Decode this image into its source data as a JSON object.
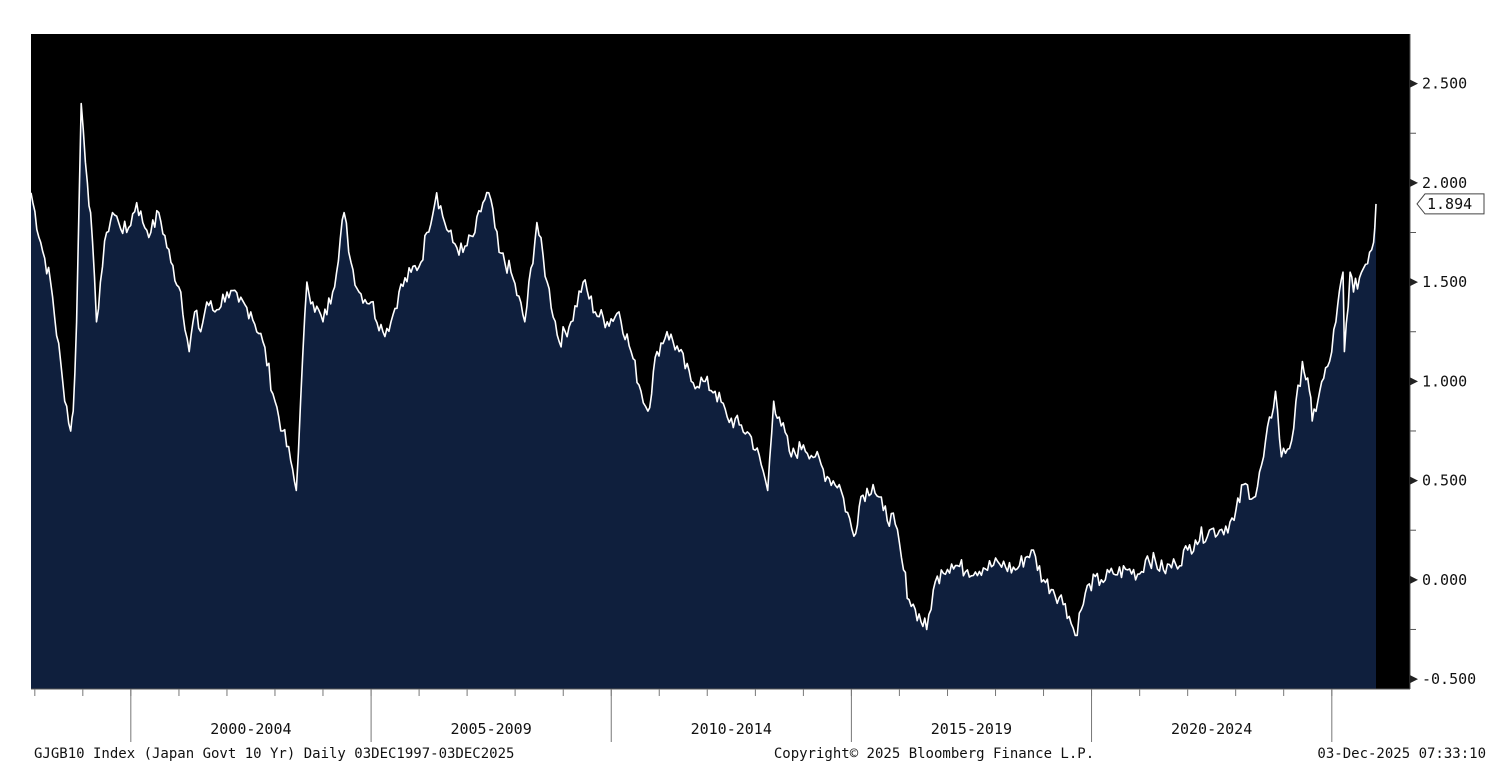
{
  "chart_data": {
    "type": "area",
    "title": "",
    "xlabel": "",
    "ylabel": "",
    "x_range": [
      "1997-12-03",
      "2025-12-03"
    ],
    "ylim": [
      -0.55,
      2.75
    ],
    "y_ticks": [
      -0.5,
      0.0,
      0.5,
      1.0,
      1.5,
      2.0,
      2.5
    ],
    "y_tick_labels": [
      "-0.500",
      "0.000",
      "0.500",
      "1.000",
      "1.500",
      "2.000",
      "2.500"
    ],
    "x_period_labels": [
      {
        "label": "2000-2004",
        "start": "2000-01-01",
        "end": "2004-12-31"
      },
      {
        "label": "2005-2009",
        "start": "2005-01-01",
        "end": "2009-12-31"
      },
      {
        "label": "2010-2014",
        "start": "2010-01-01",
        "end": "2014-12-31"
      },
      {
        "label": "2015-2019",
        "start": "2015-01-01",
        "end": "2019-12-31"
      },
      {
        "label": "2020-2024",
        "start": "2020-01-01",
        "end": "2024-12-31"
      }
    ],
    "last_value_label": "1.894",
    "grid": false,
    "legend": "none",
    "colors": {
      "background": "#000000",
      "area": "#0f1f3d",
      "line": "#ffffff"
    },
    "series": [
      {
        "x": [
          "1997-12-03",
          "1998-02-15",
          "1998-05-01",
          "1998-08-01",
          "1998-10-01",
          "1998-10-20",
          "1998-11-15",
          "1998-12-20",
          "1999-02-05",
          "1999-03-01",
          "1999-04-15",
          "1999-05-15",
          "1999-07-01",
          "1999-08-15",
          "1999-10-01",
          "1999-12-01",
          "2000-02-15",
          "2000-04-01",
          "2000-06-01",
          "2000-08-01",
          "2000-11-01",
          "2001-01-15",
          "2001-03-20",
          "2001-05-01",
          "2001-06-15",
          "2001-08-01",
          "2001-10-01",
          "2002-01-01",
          "2002-04-01",
          "2002-07-01",
          "2002-10-01",
          "2003-01-01",
          "2003-03-01",
          "2003-05-01",
          "2003-06-12",
          "2003-07-15",
          "2003-09-01",
          "2003-10-15",
          "2004-01-01",
          "2004-03-15",
          "2004-06-10",
          "2004-08-01",
          "2004-10-01",
          "2005-01-01",
          "2005-04-01",
          "2005-06-01",
          "2005-08-01",
          "2005-11-01",
          "2006-01-15",
          "2006-03-01",
          "2006-05-15",
          "2006-07-15",
          "2006-09-15",
          "2006-12-01",
          "2007-03-01",
          "2007-05-01",
          "2007-06-15",
          "2007-09-01",
          "2007-12-01",
          "2008-03-15",
          "2008-06-15",
          "2008-09-01",
          "2008-12-01",
          "2009-03-01",
          "2009-06-01",
          "2009-09-01",
          "2009-12-01",
          "2010-03-01",
          "2010-06-01",
          "2010-08-15",
          "2010-10-07",
          "2010-12-15",
          "2011-03-01",
          "2011-06-01",
          "2011-09-01",
          "2011-12-01",
          "2012-03-01",
          "2012-06-01",
          "2012-09-01",
          "2012-12-01",
          "2013-03-01",
          "2013-04-05",
          "2013-05-20",
          "2013-07-01",
          "2013-10-01",
          "2014-01-01",
          "2014-04-01",
          "2014-07-01",
          "2014-10-01",
          "2015-01-20",
          "2015-03-15",
          "2015-06-15",
          "2015-09-01",
          "2015-12-01",
          "2016-02-01",
          "2016-03-15",
          "2016-05-01",
          "2016-07-27",
          "2016-09-15",
          "2016-11-15",
          "2017-02-01",
          "2017-06-01",
          "2017-10-01",
          "2018-02-01",
          "2018-06-01",
          "2018-10-01",
          "2019-01-01",
          "2019-03-15",
          "2019-06-15",
          "2019-08-30",
          "2019-10-15",
          "2019-12-15",
          "2020-03-15",
          "2020-06-15",
          "2020-10-01",
          "2021-01-01",
          "2021-03-01",
          "2021-07-01",
          "2021-10-01",
          "2022-01-01",
          "2022-03-01",
          "2022-06-15",
          "2022-09-01",
          "2022-12-20",
          "2023-03-01",
          "2023-06-01",
          "2023-08-01",
          "2023-10-31",
          "2023-12-15",
          "2024-03-01",
          "2024-05-22",
          "2024-07-15",
          "2024-08-05",
          "2024-10-01",
          "2024-12-15",
          "2025-02-01",
          "2025-03-27",
          "2025-04-07",
          "2025-05-20",
          "2025-06-15",
          "2025-08-15",
          "2025-10-15",
          "2025-11-15",
          "2025-12-03"
        ],
        "y": [
          1.95,
          1.7,
          1.5,
          1.0,
          0.75,
          0.85,
          1.3,
          2.4,
          2.0,
          1.85,
          1.3,
          1.5,
          1.75,
          1.85,
          1.8,
          1.75,
          1.9,
          1.8,
          1.75,
          1.85,
          1.6,
          1.45,
          1.15,
          1.35,
          1.25,
          1.4,
          1.35,
          1.45,
          1.4,
          1.35,
          1.2,
          0.9,
          0.75,
          0.6,
          0.45,
          0.9,
          1.5,
          1.4,
          1.3,
          1.45,
          1.85,
          1.6,
          1.45,
          1.4,
          1.25,
          1.3,
          1.45,
          1.55,
          1.6,
          1.75,
          1.95,
          1.8,
          1.7,
          1.65,
          1.75,
          1.9,
          1.95,
          1.65,
          1.55,
          1.3,
          1.8,
          1.5,
          1.2,
          1.3,
          1.5,
          1.35,
          1.3,
          1.35,
          1.15,
          0.95,
          0.85,
          1.15,
          1.25,
          1.15,
          1.0,
          1.0,
          0.95,
          0.82,
          0.78,
          0.72,
          0.55,
          0.45,
          0.9,
          0.82,
          0.62,
          0.68,
          0.62,
          0.52,
          0.48,
          0.22,
          0.42,
          0.48,
          0.35,
          0.28,
          0.05,
          -0.1,
          -0.15,
          -0.25,
          -0.05,
          0.05,
          0.08,
          0.05,
          0.06,
          0.08,
          0.05,
          0.15,
          0.0,
          -0.05,
          -0.12,
          -0.28,
          -0.15,
          -0.02,
          0.0,
          0.03,
          0.05,
          0.03,
          0.12,
          0.05,
          0.08,
          0.15,
          0.2,
          0.25,
          0.25,
          0.3,
          0.48,
          0.42,
          0.62,
          0.95,
          0.62,
          0.7,
          1.1,
          0.95,
          0.8,
          0.95,
          1.1,
          1.3,
          1.55,
          1.15,
          1.55,
          1.45,
          1.55,
          1.65,
          1.7,
          1.894
        ]
      }
    ]
  },
  "footer": {
    "left": "GJGB10 Index (Japan Govt 10 Yr) Daily 03DEC1997-03DEC2025",
    "center": "Copyright© 2025 Bloomberg Finance L.P.",
    "right": "03-Dec-2025 07:33:10"
  }
}
